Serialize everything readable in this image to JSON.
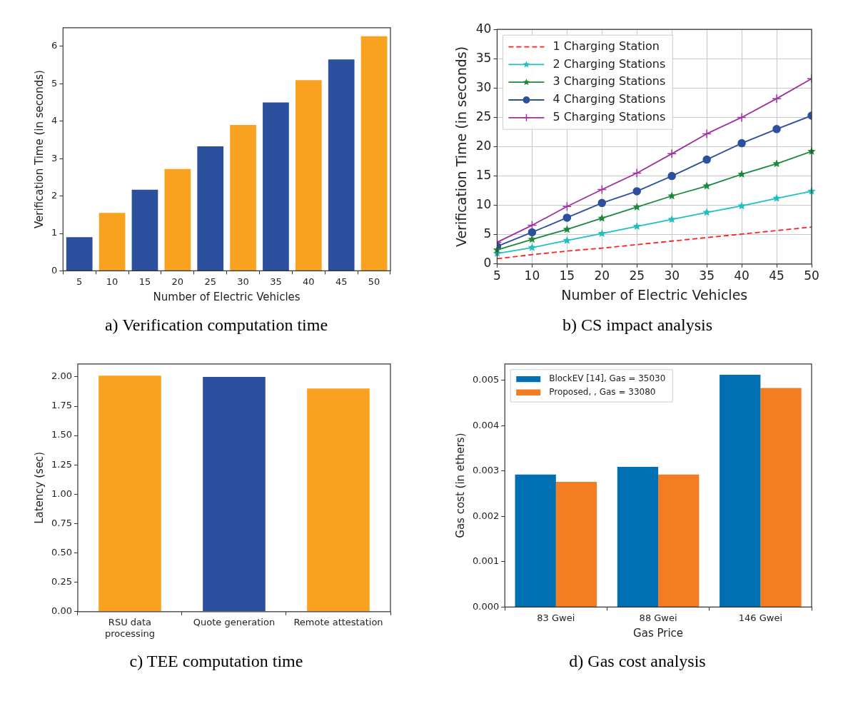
{
  "chart_data": [
    {
      "type": "bar",
      "title": "a) Verification computation time",
      "xlabel": "Number of Electric Vehicles",
      "ylabel": "Verification Time (in seconds)",
      "categories": [
        "5",
        "10",
        "15",
        "20",
        "25",
        "30",
        "35",
        "40",
        "45",
        "50"
      ],
      "values": [
        0.9,
        1.55,
        2.17,
        2.72,
        3.33,
        3.9,
        4.5,
        5.1,
        5.65,
        6.27
      ],
      "colors": [
        "#2c4f9e",
        "#f8a21f",
        "#2c4f9e",
        "#f8a21f",
        "#2c4f9e",
        "#f8a21f",
        "#2c4f9e",
        "#f8a21f",
        "#2c4f9e",
        "#f8a21f"
      ],
      "ylim": [
        0,
        6.5
      ],
      "yticks": [
        0,
        1,
        2,
        3,
        4,
        5,
        6
      ]
    },
    {
      "type": "line",
      "title": "b) CS impact analysis",
      "xlabel": "Number of Electric Vehicles",
      "ylabel": "Verification Time (in seconds)",
      "x": [
        5,
        10,
        15,
        20,
        25,
        30,
        35,
        40,
        45,
        50
      ],
      "xlim": [
        5,
        50
      ],
      "xticks": [
        5,
        10,
        15,
        20,
        25,
        30,
        35,
        40,
        45,
        50
      ],
      "ylim": [
        0,
        40
      ],
      "yticks": [
        0,
        5,
        10,
        15,
        20,
        25,
        30,
        35,
        40
      ],
      "grid": true,
      "legend": "top left",
      "series": [
        {
          "name": "1 Charging Station",
          "color": "#ff2020",
          "line_style": "dashed",
          "marker": "none",
          "values": [
            0.9,
            1.6,
            2.2,
            2.7,
            3.3,
            3.9,
            4.5,
            5.1,
            5.7,
            6.3
          ]
        },
        {
          "name": "2 Charging Stations",
          "color": "#20c0c0",
          "line_style": "solid",
          "marker": "star",
          "values": [
            1.8,
            2.8,
            4.0,
            5.2,
            6.4,
            7.6,
            8.8,
            9.9,
            11.2,
            12.4
          ]
        },
        {
          "name": "3 Charging Stations",
          "color": "#1a8a3a",
          "line_style": "solid",
          "marker": "star",
          "values": [
            2.4,
            4.2,
            5.9,
            7.8,
            9.7,
            11.6,
            13.3,
            15.3,
            17.1,
            19.2
          ]
        },
        {
          "name": "4 Charging Stations",
          "color": "#2c4f9e",
          "line_style": "solid",
          "marker": "circle",
          "values": [
            3.0,
            5.4,
            7.9,
            10.4,
            12.4,
            15.0,
            17.8,
            20.6,
            23.0,
            25.3
          ]
        },
        {
          "name": "5 Charging Stations",
          "color": "#a030a0",
          "line_style": "solid",
          "marker": "cross",
          "values": [
            3.7,
            6.6,
            9.8,
            12.7,
            15.5,
            18.8,
            22.2,
            25.0,
            28.2,
            31.6
          ]
        }
      ]
    },
    {
      "type": "bar",
      "title": "c) TEE computation time",
      "ylabel": "Latency (sec)",
      "categories": [
        "RSU data processing",
        "Quote generation",
        "Remote attestation"
      ],
      "values": [
        2.01,
        2.0,
        1.9
      ],
      "colors": [
        "#f8a21f",
        "#2c4f9e",
        "#f8a21f"
      ],
      "ylim": [
        0,
        2.11
      ],
      "yticks": [
        {
          "value": 0,
          "label": "0.00"
        },
        {
          "value": 0.25,
          "label": "0.25"
        },
        {
          "value": 0.5,
          "label": "0.50"
        },
        {
          "value": 0.75,
          "label": "0.75"
        },
        {
          "value": 1,
          "label": "1.00"
        },
        {
          "value": 1.25,
          "label": "1.25"
        },
        {
          "value": 1.5,
          "label": "1.50"
        },
        {
          "value": 1.75,
          "label": "1.75"
        },
        {
          "value": 2,
          "label": "2.00"
        }
      ]
    },
    {
      "type": "bar",
      "title": "d) Gas cost analysis",
      "xlabel": "Gas Price",
      "ylabel": "Gas cost (in ethers)",
      "categories": [
        "83 Gwei",
        "88 Gwei",
        "146 Gwei"
      ],
      "ylim": [
        0,
        0.00536
      ],
      "yticks": [
        {
          "value": 0,
          "label": "0.000"
        },
        0.001,
        0.002,
        0.003,
        0.004,
        0.005
      ],
      "legend": "top left",
      "series": [
        {
          "name": "BlockEV [14], Gas = 35030",
          "color": "#0070b2",
          "values": [
            0.00292,
            0.00309,
            0.00512
          ]
        },
        {
          "name": "Proposed, , Gas = 33080",
          "color": "#f27d22",
          "values": [
            0.00276,
            0.00292,
            0.00483
          ]
        }
      ]
    }
  ]
}
